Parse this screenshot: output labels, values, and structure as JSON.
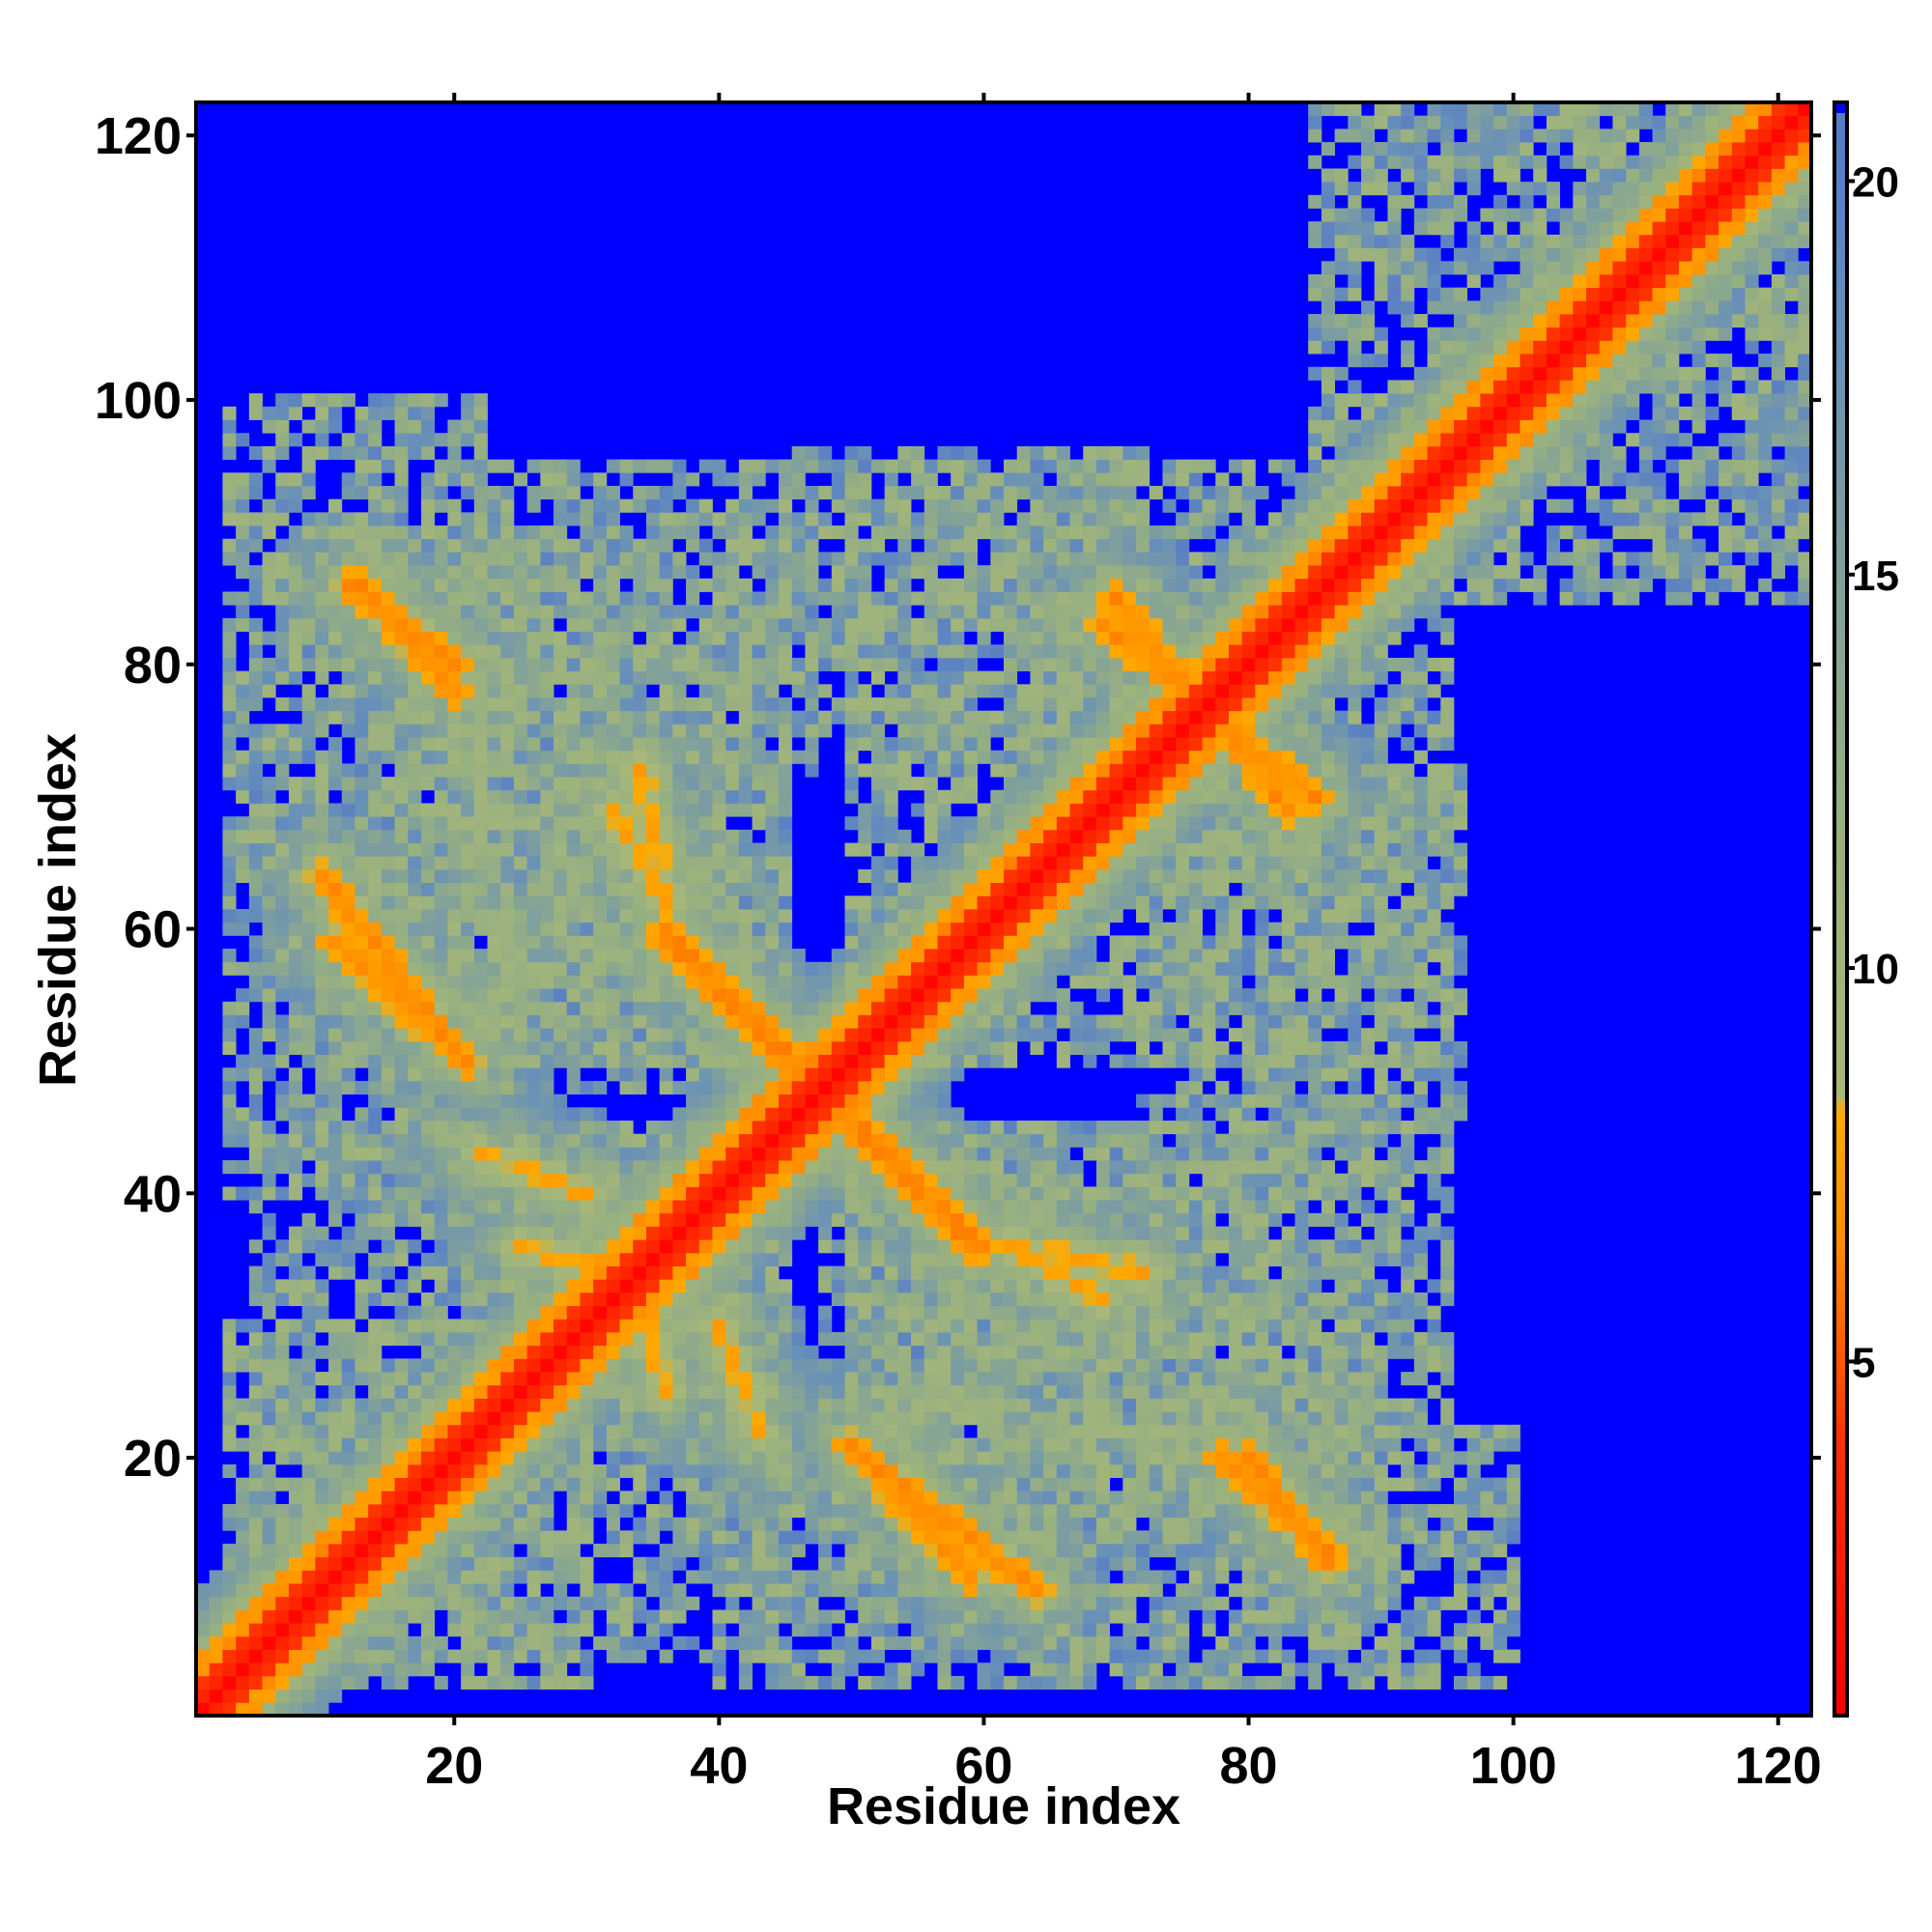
{
  "chart_data": {
    "type": "heatmap",
    "title": "",
    "xlabel": "Residue index",
    "ylabel": "Residue index",
    "n": 122,
    "xlim": [
      1,
      122
    ],
    "ylim": [
      1,
      122
    ],
    "xticks": [
      20,
      40,
      60,
      80,
      100,
      120
    ],
    "yticks": [
      20,
      40,
      60,
      80,
      100,
      120
    ],
    "colorbar": {
      "ticks": [
        5,
        10,
        15,
        20
      ],
      "range": [
        0.5,
        21
      ],
      "stops": [
        {
          "v": 0.5,
          "color": "#ff0000"
        },
        {
          "v": 4,
          "color": "#ff3300"
        },
        {
          "v": 6.5,
          "color": "#ff8c00"
        },
        {
          "v": 8.2,
          "color": "#ffaa00"
        },
        {
          "v": 8.4,
          "color": "#a8b878"
        },
        {
          "v": 12,
          "color": "#98b080"
        },
        {
          "v": 18,
          "color": "#6890b8"
        },
        {
          "v": 20.9,
          "color": "#5578c8"
        },
        {
          "v": 21,
          "color": "#0000ff"
        }
      ],
      "cutoff_color": "#0000ff",
      "cutoff": 20.5
    },
    "matrix_description": "symmetric residue-residue distance map; near-diagonal band < 6, beta-sheet contacts between strands, distances > cutoff shown blue",
    "contact_features": [
      {
        "x0": 13,
        "y0": 86,
        "x1": 20,
        "y1": 78,
        "v": 6
      },
      {
        "x0": 10,
        "y0": 64,
        "x1": 20,
        "y1": 51,
        "v": 6
      },
      {
        "x0": 36,
        "y0": 59,
        "x1": 46,
        "y1": 49,
        "v": 6
      },
      {
        "x0": 50,
        "y0": 46,
        "x1": 60,
        "y1": 36,
        "v": 6
      },
      {
        "x0": 50,
        "y0": 21,
        "x1": 59,
        "y1": 11,
        "v": 6
      },
      {
        "x0": 80,
        "y0": 20,
        "x1": 86,
        "y1": 12,
        "v": 6
      },
      {
        "x0": 70,
        "y0": 85,
        "x1": 83,
        "y1": 69,
        "v": 6
      },
      {
        "x0": 22,
        "y0": 43,
        "x1": 30,
        "y1": 40,
        "v": 7
      },
      {
        "x0": 33,
        "y0": 36,
        "x1": 36,
        "y1": 25,
        "v": 7
      },
      {
        "x0": 62,
        "y0": 36,
        "x1": 72,
        "y1": 34,
        "v": 7
      },
      {
        "x0": 32,
        "y0": 69,
        "x1": 36,
        "y1": 62,
        "v": 7
      }
    ],
    "blobs": [
      {
        "x0": 10,
        "x1": 32,
        "y0": 50,
        "y1": 90
      },
      {
        "x0": 5,
        "x1": 45,
        "y0": 5,
        "y1": 45
      },
      {
        "x0": 40,
        "x1": 100,
        "y0": 3,
        "y1": 22
      },
      {
        "x0": 20,
        "x1": 45,
        "y0": 50,
        "y1": 88
      },
      {
        "x0": 55,
        "x1": 95,
        "y0": 50,
        "y1": 90
      },
      {
        "x0": 48,
        "x1": 95,
        "y0": 22,
        "y1": 45
      },
      {
        "x0": 72,
        "x1": 96,
        "y0": 45,
        "y1": 72
      },
      {
        "x0": 3,
        "x1": 22,
        "y0": 5,
        "y1": 30
      },
      {
        "x0": 85,
        "x1": 122,
        "y0": 85,
        "y1": 122
      }
    ]
  }
}
